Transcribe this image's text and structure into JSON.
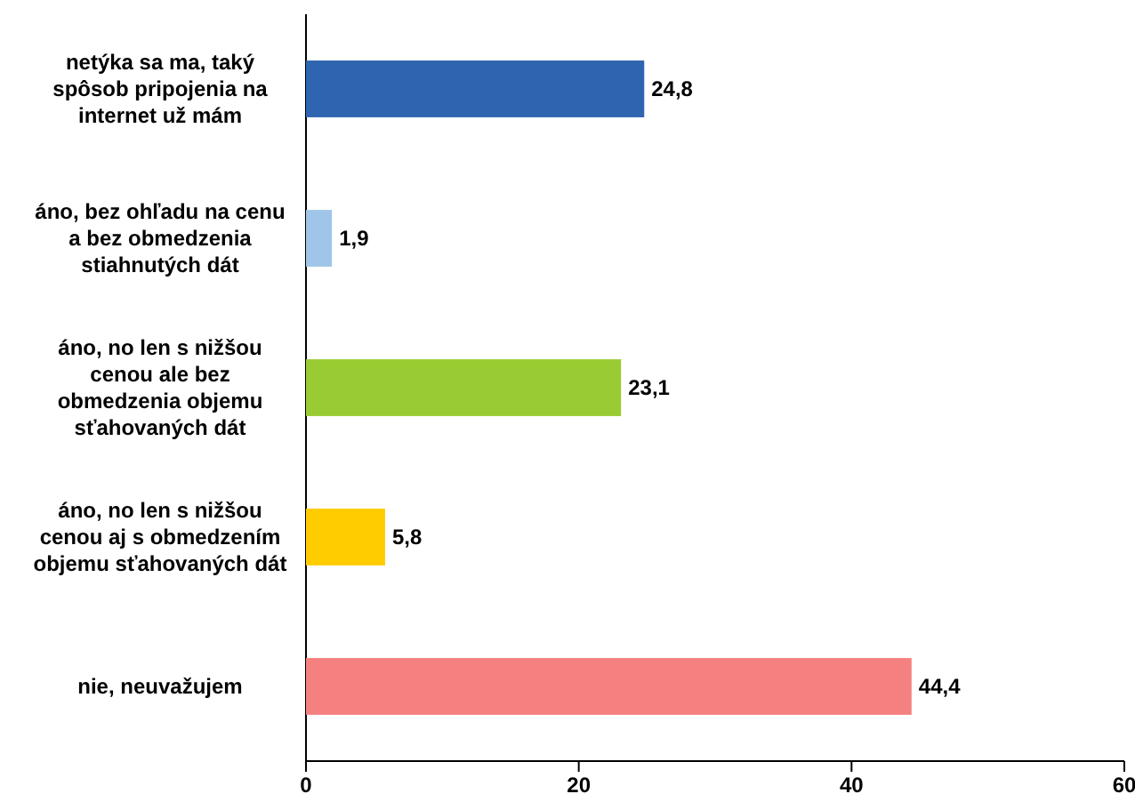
{
  "chart_data": {
    "type": "bar",
    "orientation": "horizontal",
    "categories": [
      "netýka sa ma, taký spôsob pripojenia na internet už mám",
      "áno, bez ohľadu na cenu a bez obmedzenia stiahnutých dát",
      "áno, no len s nižšou cenou ale bez obmedzenia objemu sťahovaných dát",
      "áno, no len s nižšou cenou aj s obmedzením objemu sťahovaných dát",
      "nie, neuvažujem"
    ],
    "values": [
      24.8,
      1.9,
      23.1,
      5.8,
      44.4
    ],
    "colors": [
      "#2e64b0",
      "#9fc5e8",
      "#99cc33",
      "#ffcc00",
      "#f58080"
    ],
    "value_labels": [
      "24,8",
      "1,9",
      "23,1",
      "5,8",
      "44,4"
    ],
    "xlim": [
      0,
      60
    ],
    "xticks": [
      0,
      20,
      40,
      60
    ]
  }
}
